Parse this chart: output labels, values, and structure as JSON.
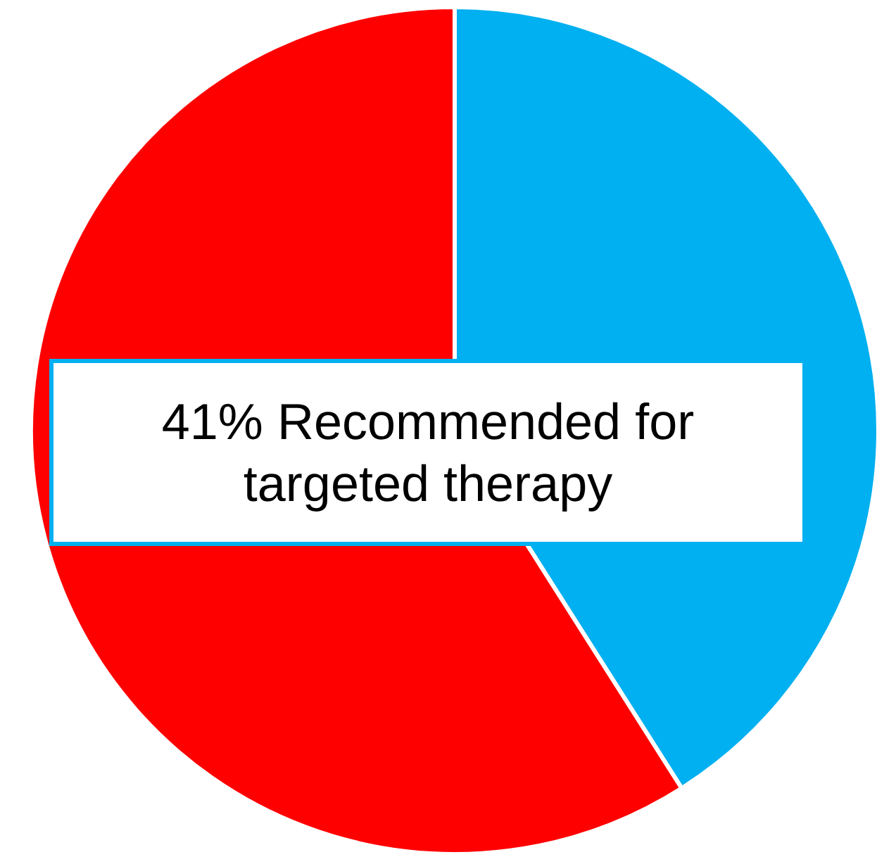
{
  "chart_data": {
    "type": "pie",
    "categories": [
      null,
      null
    ],
    "values": [
      41,
      59
    ],
    "colors": [
      "#00b0f0",
      "#ff0000"
    ],
    "annotations": [
      "41% Recommended for targeted therapy"
    ]
  }
}
